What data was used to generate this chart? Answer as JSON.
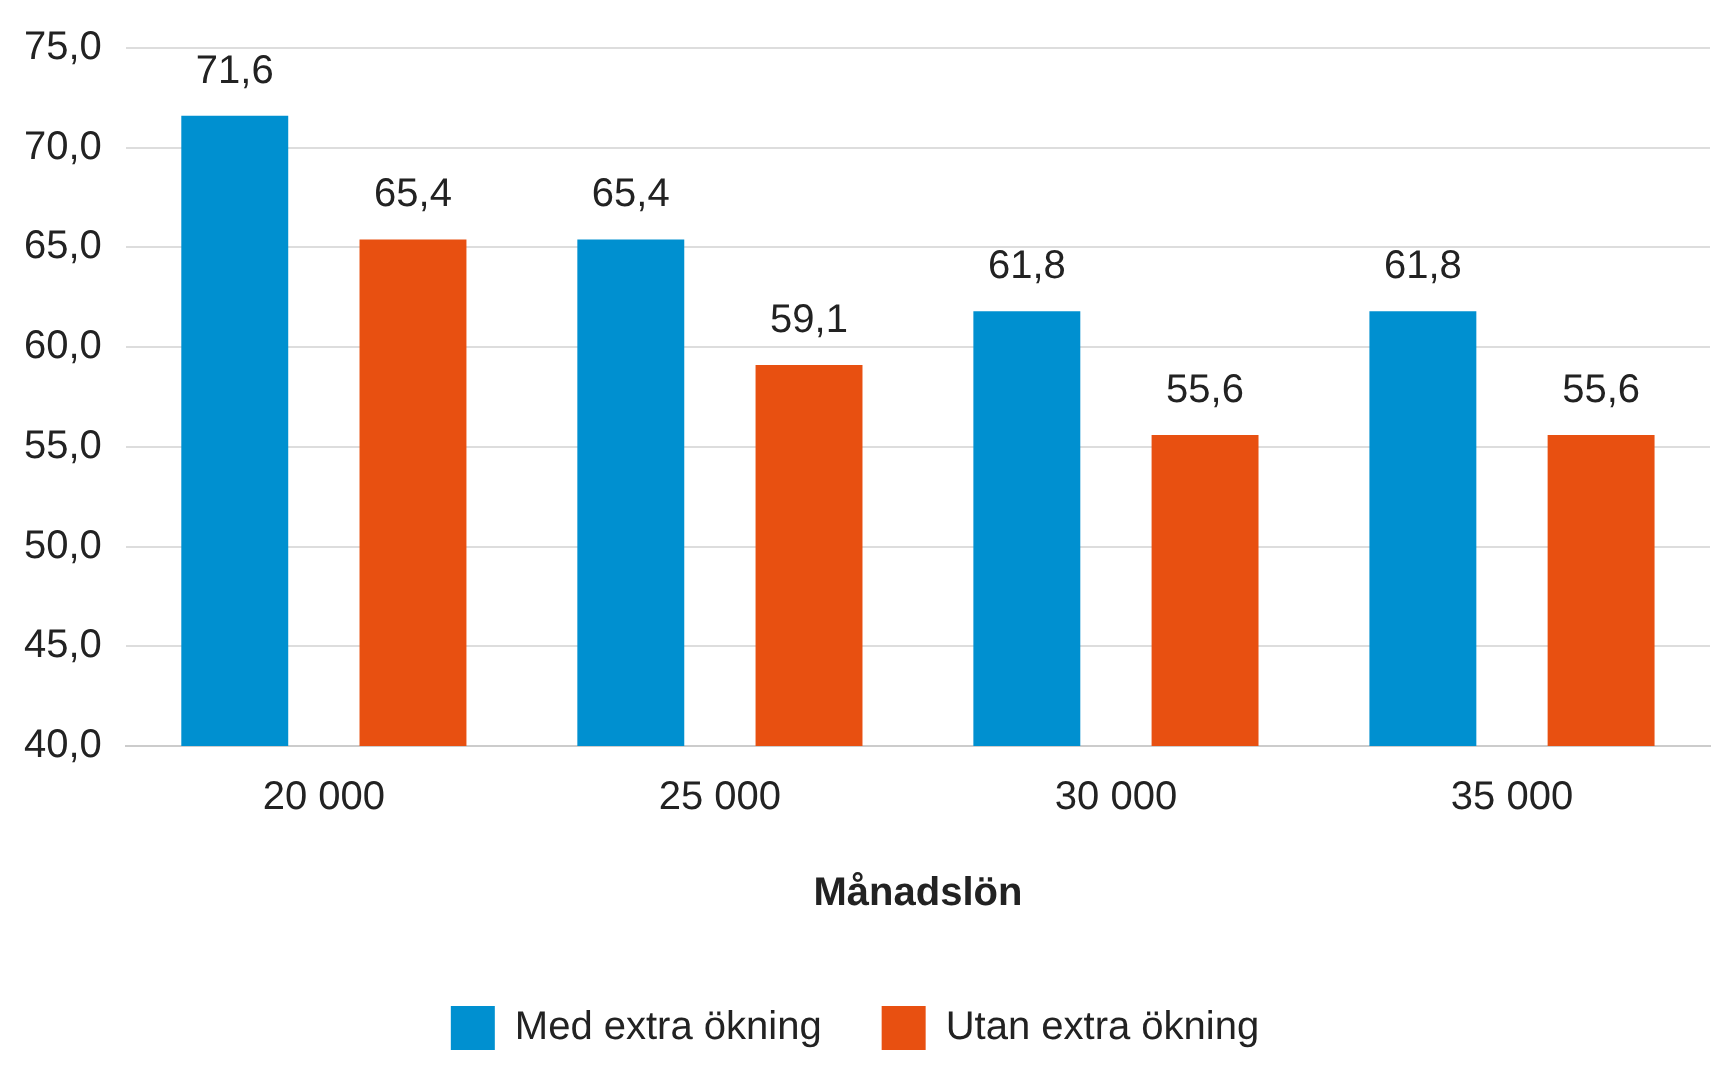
{
  "chart_data": {
    "type": "bar",
    "xlabel": "Månadslön",
    "categories": [
      "20 000",
      "25 000",
      "30 000",
      "35 000"
    ],
    "series": [
      {
        "name": "Med extra ökning",
        "color": "#0090d0",
        "values": [
          71.6,
          65.4,
          61.8,
          61.8
        ],
        "value_labels": [
          "71,6",
          "65,4",
          "61,8",
          "61,8"
        ]
      },
      {
        "name": "Utan extra ökning",
        "color": "#e85011",
        "values": [
          65.4,
          59.1,
          55.6,
          55.6
        ],
        "value_labels": [
          "65,4",
          "59,1",
          "55,6",
          "55,6"
        ]
      }
    ],
    "ylim": [
      40,
      75
    ],
    "yticks": [
      {
        "value": 40,
        "label": "40,0"
      },
      {
        "value": 45,
        "label": "45,0"
      },
      {
        "value": 50,
        "label": "50,0"
      },
      {
        "value": 55,
        "label": "55,0"
      },
      {
        "value": 60,
        "label": "60,0"
      },
      {
        "value": 65,
        "label": "65,0"
      },
      {
        "value": 70,
        "label": "70,0"
      },
      {
        "value": 75,
        "label": "75,0"
      }
    ],
    "grid": "y",
    "legend": "bottom"
  }
}
